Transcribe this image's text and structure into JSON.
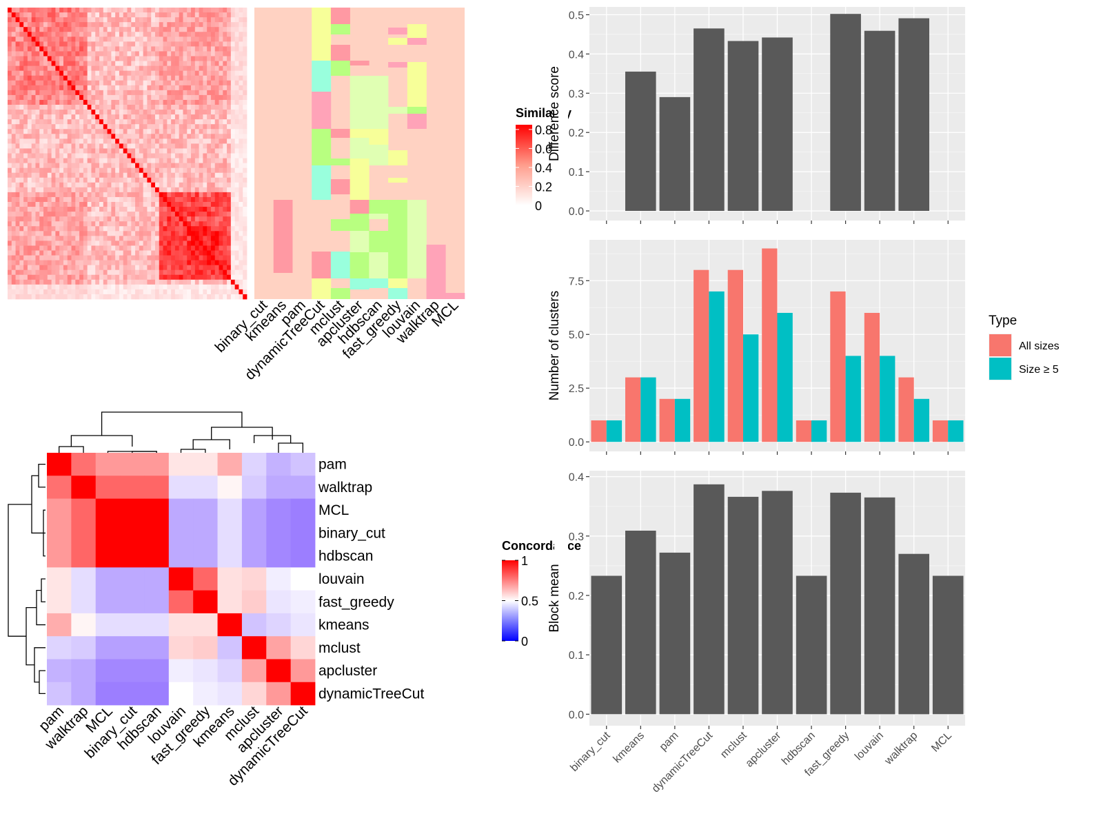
{
  "similarity_heatmap": {
    "legend_title": "Similarity",
    "legend_ticks": [
      "0.8",
      "0.6",
      "0.4",
      "0.2",
      "0"
    ],
    "legend_values": [
      0.8,
      0.6,
      0.4,
      0.2,
      0
    ],
    "annotation_columns": [
      "binary_cut",
      "kmeans",
      "pam",
      "dynamicTreeCut",
      "mclust",
      "apcluster",
      "hdbscan",
      "fast_greedy",
      "louvain",
      "walktrap",
      "MCL"
    ]
  },
  "concordance_heatmap": {
    "legend_title": "Concordance",
    "legend_ticks": [
      "1",
      "0.5",
      "0"
    ],
    "legend_values": [
      1,
      0.5,
      0
    ],
    "rows": [
      "pam",
      "walktrap",
      "MCL",
      "binary_cut",
      "hdbscan",
      "louvain",
      "fast_greedy",
      "kmeans",
      "mclust",
      "apcluster",
      "dynamicTreeCut"
    ],
    "matrix": [
      [
        1.0,
        0.78,
        0.7,
        0.7,
        0.7,
        0.55,
        0.55,
        0.66,
        0.4,
        0.32,
        0.36
      ],
      [
        0.78,
        1.0,
        0.8,
        0.8,
        0.8,
        0.42,
        0.42,
        0.52,
        0.38,
        0.3,
        0.3
      ],
      [
        0.7,
        0.8,
        1.0,
        1.0,
        1.0,
        0.3,
        0.3,
        0.42,
        0.28,
        0.22,
        0.2
      ],
      [
        0.7,
        0.8,
        1.0,
        1.0,
        1.0,
        0.3,
        0.3,
        0.42,
        0.28,
        0.22,
        0.2
      ],
      [
        0.7,
        0.8,
        1.0,
        1.0,
        1.0,
        0.3,
        0.3,
        0.42,
        0.28,
        0.22,
        0.2
      ],
      [
        0.55,
        0.42,
        0.3,
        0.3,
        0.3,
        1.0,
        0.8,
        0.56,
        0.58,
        0.46,
        0.5
      ],
      [
        0.55,
        0.42,
        0.3,
        0.3,
        0.3,
        0.8,
        1.0,
        0.56,
        0.6,
        0.44,
        0.46
      ],
      [
        0.66,
        0.52,
        0.42,
        0.42,
        0.42,
        0.56,
        0.56,
        1.0,
        0.36,
        0.4,
        0.44
      ],
      [
        0.4,
        0.38,
        0.28,
        0.28,
        0.28,
        0.58,
        0.6,
        0.36,
        1.0,
        0.68,
        0.58
      ],
      [
        0.32,
        0.3,
        0.22,
        0.22,
        0.22,
        0.46,
        0.44,
        0.4,
        0.68,
        1.0,
        0.7
      ],
      [
        0.36,
        0.3,
        0.2,
        0.2,
        0.2,
        0.5,
        0.46,
        0.44,
        0.58,
        0.7,
        1.0
      ]
    ]
  },
  "chart_data": [
    {
      "type": "bar",
      "categories": [
        "binary_cut",
        "kmeans",
        "pam",
        "dynamicTreeCut",
        "mclust",
        "apcluster",
        "hdbscan",
        "fast_greedy",
        "louvain",
        "walktrap",
        "MCL"
      ],
      "values": [
        0,
        0.355,
        0.29,
        0.465,
        0.433,
        0.442,
        0,
        0.502,
        0.459,
        0.491,
        0
      ],
      "ylabel": "Difference score",
      "ylim": [
        0,
        0.52
      ],
      "yticks": [
        "0.0",
        "0.1",
        "0.2",
        "0.3",
        "0.4",
        "0.5"
      ],
      "ytick_values": [
        0,
        0.1,
        0.2,
        0.3,
        0.4,
        0.5
      ]
    },
    {
      "type": "bar",
      "categories": [
        "binary_cut",
        "kmeans",
        "pam",
        "dynamicTreeCut",
        "mclust",
        "apcluster",
        "hdbscan",
        "fast_greedy",
        "louvain",
        "walktrap",
        "MCL"
      ],
      "series": [
        {
          "name": "All sizes",
          "values": [
            1,
            3,
            2,
            8,
            8,
            9,
            1,
            7,
            6,
            3,
            1
          ]
        },
        {
          "name": "Size ≥ 5",
          "values": [
            1,
            3,
            2,
            7,
            5,
            6,
            1,
            4,
            4,
            2,
            1
          ]
        }
      ],
      "ylabel": "Number of clusters",
      "ylim": [
        0,
        9.4
      ],
      "yticks": [
        "0.0",
        "2.5",
        "5.0",
        "7.5"
      ],
      "ytick_values": [
        0,
        2.5,
        5,
        7.5
      ],
      "legend_title": "Type",
      "legend_position": "right",
      "colors": [
        "#F8766D",
        "#00BFC4"
      ]
    },
    {
      "type": "bar",
      "categories": [
        "binary_cut",
        "kmeans",
        "pam",
        "dynamicTreeCut",
        "mclust",
        "apcluster",
        "hdbscan",
        "fast_greedy",
        "louvain",
        "walktrap",
        "MCL"
      ],
      "values": [
        0.233,
        0.309,
        0.272,
        0.387,
        0.366,
        0.376,
        0.233,
        0.373,
        0.365,
        0.27,
        0.233
      ],
      "ylabel": "Block mean",
      "ylim": [
        0,
        0.41
      ],
      "yticks": [
        "0.0",
        "0.1",
        "0.2",
        "0.3",
        "0.4"
      ],
      "ytick_values": [
        0,
        0.1,
        0.2,
        0.3,
        0.4
      ]
    }
  ]
}
